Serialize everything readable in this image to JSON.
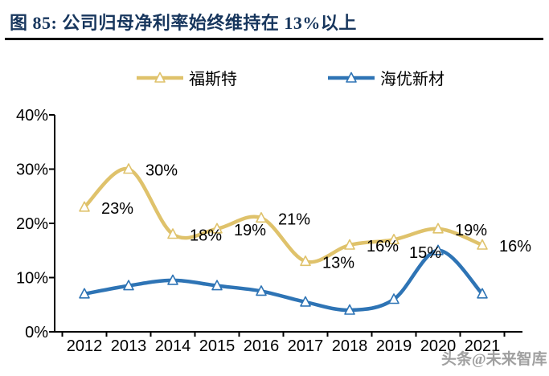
{
  "figure": {
    "title": "图 85: 公司归母净利率始终维持在 13%以上",
    "watermark": "头条@未来智库"
  },
  "legend": {
    "items": [
      {
        "label": "福斯特",
        "color": "#DFC26B"
      },
      {
        "label": "海优新材",
        "color": "#2E74B5"
      }
    ]
  },
  "chart_data": {
    "type": "line",
    "title": "公司归母净利率始终维持在 13%以上",
    "categories": [
      "2012",
      "2013",
      "2014",
      "2015",
      "2016",
      "2017",
      "2018",
      "2019",
      "2020",
      "2021"
    ],
    "ylim": [
      0,
      40
    ],
    "yticks": [
      "0%",
      "10%",
      "20%",
      "30%",
      "40%"
    ],
    "grid": false,
    "smooth": true,
    "marker": "open-triangle",
    "legend_position": "top",
    "series": [
      {
        "name": "福斯特",
        "color": "#DFC26B",
        "values": [
          23,
          30,
          18,
          19,
          21,
          13,
          16,
          17,
          19,
          16
        ],
        "point_labels": [
          "23%",
          "30%",
          "18%",
          "19%",
          "21%",
          "13%",
          "16%",
          "",
          "19%",
          "16%"
        ]
      },
      {
        "name": "海优新材",
        "color": "#2E74B5",
        "values": [
          7,
          8.5,
          9.5,
          8.5,
          7.5,
          5.5,
          4,
          6,
          15,
          7
        ],
        "point_labels": [
          "",
          "",
          "",
          "",
          "",
          "",
          "",
          "",
          "15%",
          ""
        ]
      }
    ]
  }
}
